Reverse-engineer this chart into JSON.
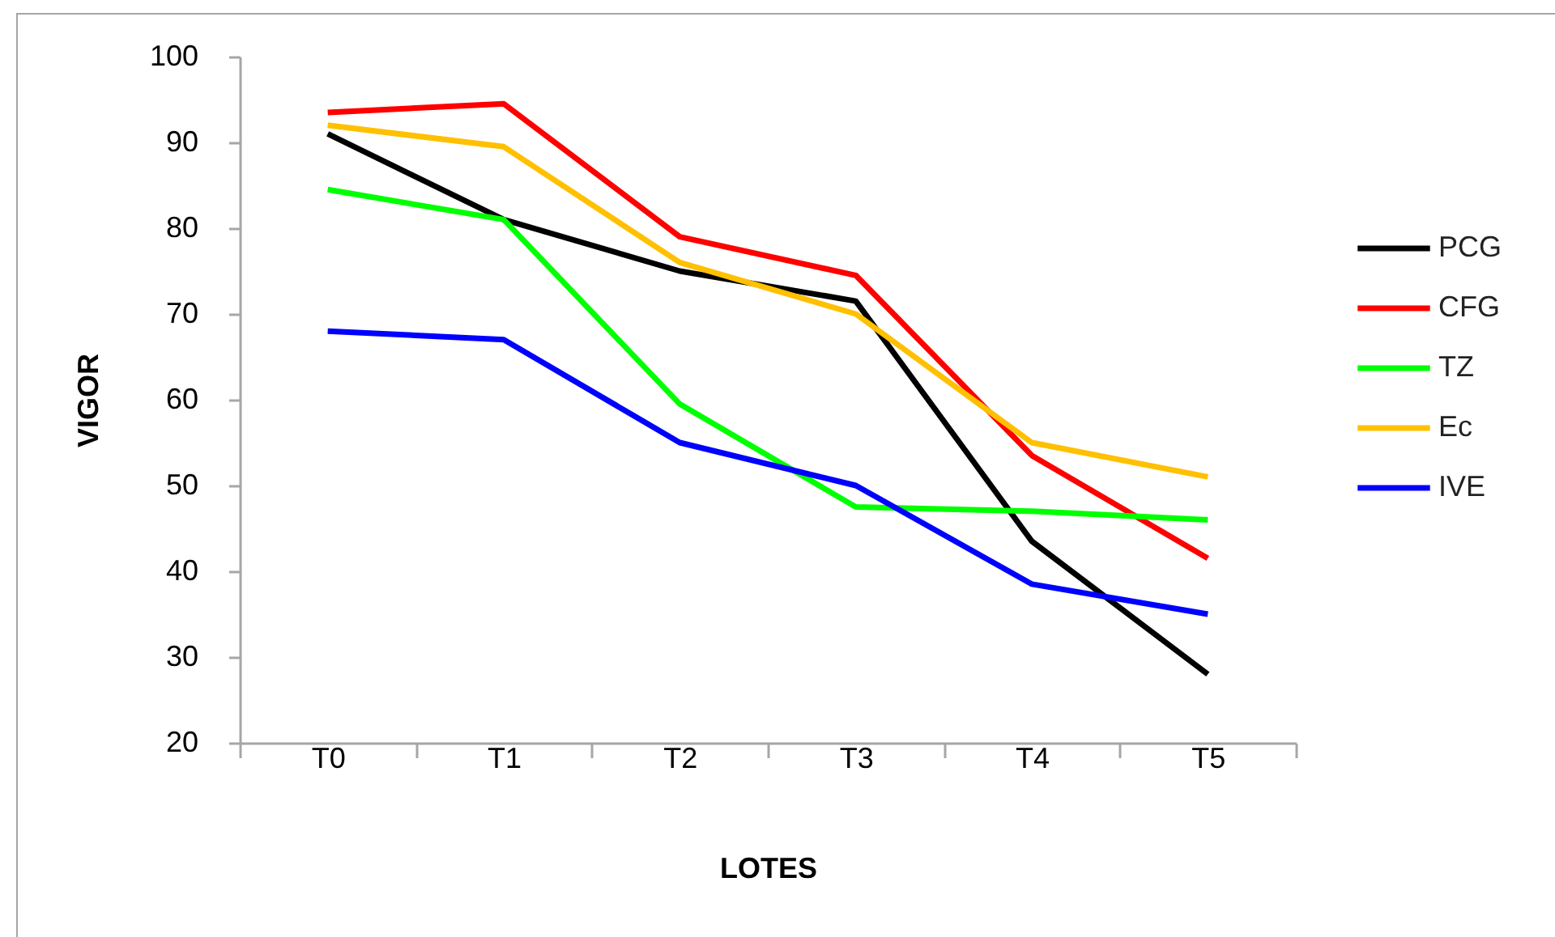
{
  "chart_data": {
    "type": "line",
    "xlabel": "LOTES",
    "ylabel": "VIGOR",
    "categories": [
      "T0",
      "T1",
      "T2",
      "T3",
      "T4",
      "T5"
    ],
    "series": [
      {
        "name": "PCG",
        "color": "#000000",
        "values": [
          91,
          81,
          75,
          71.5,
          43.5,
          28
        ]
      },
      {
        "name": "CFG",
        "color": "#ff0000",
        "values": [
          93.5,
          94.5,
          79,
          74.5,
          53.5,
          41.5
        ]
      },
      {
        "name": "TZ",
        "color": "#00ff00",
        "values": [
          84.5,
          81,
          59.5,
          47.5,
          47,
          46
        ]
      },
      {
        "name": "Ec",
        "color": "#ffc000",
        "values": [
          92,
          89.5,
          76,
          70,
          55,
          51
        ]
      },
      {
        "name": "IVE",
        "color": "#0000ff",
        "values": [
          68,
          67,
          55,
          50,
          38.5,
          35
        ]
      }
    ],
    "ylim": [
      20,
      100
    ],
    "yticks": [
      20,
      30,
      40,
      50,
      60,
      70,
      80,
      90,
      100
    ],
    "grid": false,
    "legend": "right",
    "line_style": "solid"
  }
}
